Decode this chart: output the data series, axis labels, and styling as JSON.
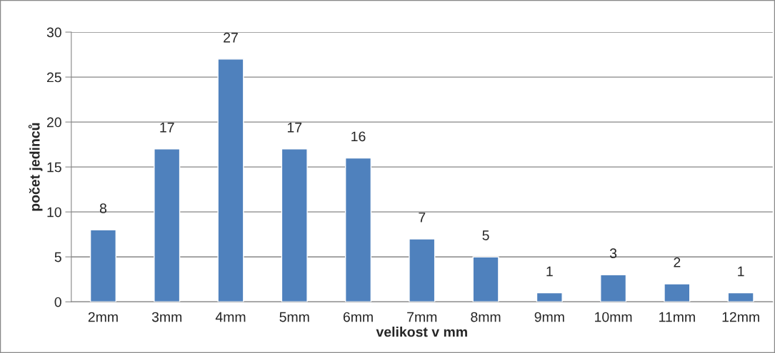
{
  "chart_data": {
    "type": "bar",
    "xlabel": "velikost v mm",
    "ylabel": "počet jedinců",
    "categories": [
      "2mm",
      "3mm",
      "4mm",
      "5mm",
      "6mm",
      "7mm",
      "8mm",
      "9mm",
      "10mm",
      "11mm",
      "12mm"
    ],
    "values": [
      8,
      17,
      27,
      17,
      16,
      7,
      5,
      1,
      3,
      2,
      1
    ],
    "color": "#4f81bd",
    "ylim": [
      0,
      30
    ],
    "yticks": [
      0,
      5,
      10,
      15,
      20,
      25,
      30
    ],
    "grid": "y",
    "data_labels": true
  }
}
